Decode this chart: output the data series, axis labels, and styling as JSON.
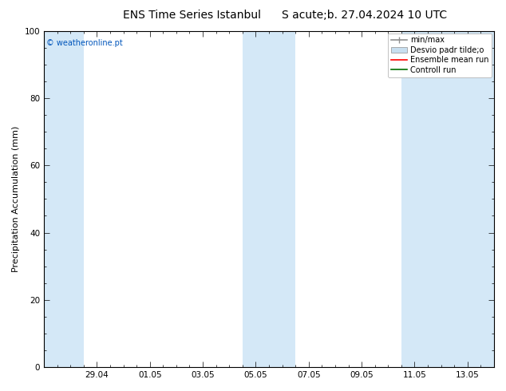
{
  "title_left": "ENS Time Series Istanbul",
  "title_right": "S acute;b. 27.04.2024 10 UTC",
  "ylabel": "Precipitation Accumulation (mm)",
  "watermark": "© weatheronline.pt",
  "ylim": [
    0,
    100
  ],
  "yticks": [
    0,
    20,
    40,
    60,
    80,
    100
  ],
  "x_labels": [
    "29.04",
    "01.05",
    "03.05",
    "05.05",
    "07.05",
    "09.05",
    "11.05",
    "13.05"
  ],
  "x_tick_positions": [
    2,
    4,
    6,
    8,
    10,
    12,
    14,
    16
  ],
  "xlim": [
    0,
    17
  ],
  "shaded_bands": [
    {
      "xmin": 0,
      "xmax": 1.5
    },
    {
      "xmin": 7.0,
      "xmax": 9.0
    },
    {
      "xmin": 13.0,
      "xmax": 15.0
    },
    {
      "xmin": 15.5,
      "xmax": 17.0
    }
  ],
  "band_color": "#d4e8f7",
  "legend_entries": [
    {
      "label": "min/max",
      "color": "#909090",
      "style": "errorbar"
    },
    {
      "label": "Desvio padr tilde;o",
      "color": "#c8dff0",
      "style": "box"
    },
    {
      "label": "Ensemble mean run",
      "color": "#ff0000",
      "style": "line"
    },
    {
      "label": "Controll run",
      "color": "#007000",
      "style": "line"
    }
  ],
  "background_color": "#ffffff",
  "plot_bg_color": "#ffffff",
  "border_color": "#000000",
  "font_size_title": 10,
  "font_size_axis": 7.5,
  "font_size_legend": 7,
  "font_size_watermark": 7,
  "font_size_ylabel": 8
}
